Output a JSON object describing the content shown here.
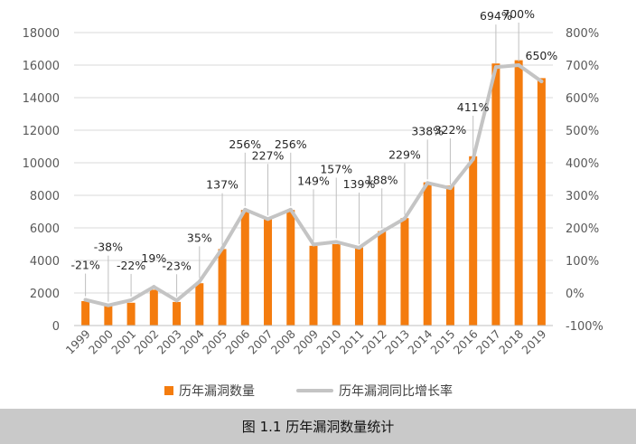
{
  "chart_data": {
    "type": "bar",
    "categories": [
      "1999",
      "2000",
      "2001",
      "2002",
      "2003",
      "2004",
      "2005",
      "2006",
      "2007",
      "2008",
      "2009",
      "2010",
      "2011",
      "2012",
      "2013",
      "2014",
      "2015",
      "2016",
      "2017",
      "2018",
      "2019"
    ],
    "series": [
      {
        "name": "历年漏洞数量",
        "type": "bar",
        "axis": "left",
        "color": "#f47c0e",
        "values": [
          1500,
          1200,
          1400,
          2200,
          1450,
          2600,
          4700,
          7100,
          6600,
          7100,
          4900,
          5000,
          4800,
          5800,
          6600,
          8800,
          8600,
          10400,
          16100,
          16300,
          15200
        ]
      },
      {
        "name": "历年漏洞同比增长率",
        "type": "line",
        "axis": "right",
        "color": "#c4c4c4",
        "values": [
          -21,
          -38,
          -22,
          19,
          -23,
          35,
          137,
          256,
          227,
          256,
          149,
          157,
          139,
          188,
          229,
          338,
          322,
          411,
          694,
          700,
          650
        ],
        "labels": [
          "-21%",
          "-38%",
          "-22%",
          "19%",
          "-23%",
          "35%",
          "137%",
          "256%",
          "227%",
          "256%",
          "149%",
          "157%",
          "139%",
          "188%",
          "229%",
          "338%",
          "322%",
          "411%",
          "694%",
          "700%",
          "650%"
        ]
      }
    ],
    "y_left": {
      "min": 0,
      "max": 18000,
      "ticks": [
        "0",
        "2000",
        "4000",
        "6000",
        "8000",
        "10000",
        "12000",
        "14000",
        "16000",
        "18000"
      ]
    },
    "y_right": {
      "min": -100,
      "max": 800,
      "ticks": [
        "-100%",
        "0%",
        "100%",
        "200%",
        "300%",
        "400%",
        "500%",
        "600%",
        "700%",
        "800%"
      ]
    },
    "grid": true,
    "legend_position": "bottom"
  },
  "caption": "图 1.1  历年漏洞数量统计"
}
